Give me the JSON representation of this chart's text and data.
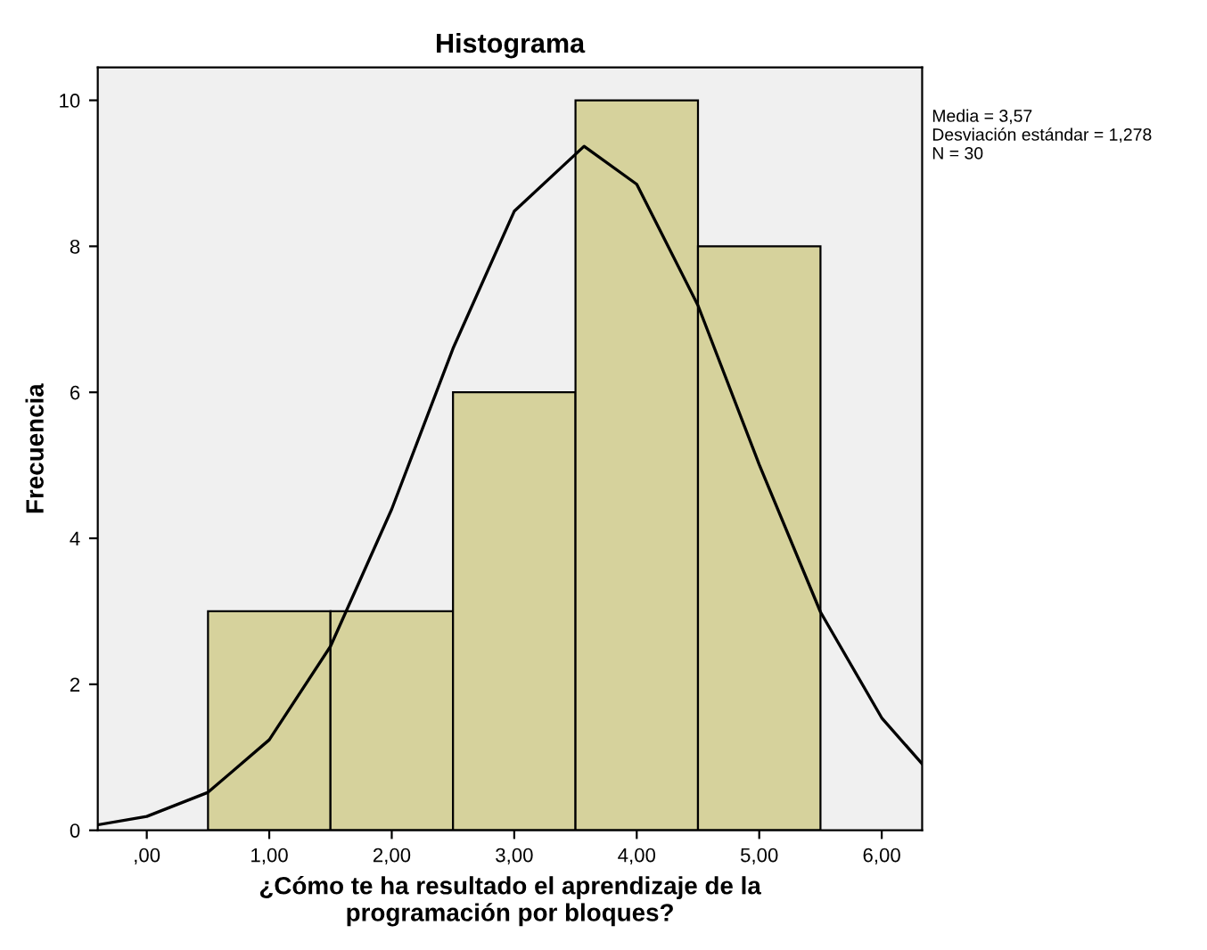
{
  "chart_data": {
    "type": "histogram",
    "title": "Histograma",
    "xlabel": "¿Cómo te ha resultado el aprendizaje de la\nprogramación por bloques?",
    "ylabel": "Frecuencia",
    "bins": [
      0.5,
      1.5,
      2.5,
      3.5,
      4.5,
      5.5
    ],
    "values": [
      3,
      3,
      6,
      10,
      8
    ],
    "color": "#d6d29c",
    "series": [
      {
        "type": "line",
        "x": [
          -0.4,
          0,
          0.5,
          1,
          1.5,
          2,
          2.5,
          3,
          3.57,
          4,
          4.5,
          5,
          5.5,
          6,
          6.33
        ],
        "values": [
          0.075,
          0.19,
          0.52,
          1.24,
          2.52,
          4.4,
          6.6,
          8.48,
          9.37,
          8.85,
          7.19,
          5.01,
          2.99,
          1.54,
          0.91
        ],
        "color": "#000000"
      }
    ],
    "xlim": [
      -0.4,
      6.33
    ],
    "ylim": [
      0,
      10.45
    ],
    "xticks": [
      {
        "value": 0,
        "label": ",00"
      },
      {
        "value": 1,
        "label": "1,00"
      },
      {
        "value": 2,
        "label": "2,00"
      },
      {
        "value": 3,
        "label": "3,00"
      },
      {
        "value": 4,
        "label": "4,00"
      },
      {
        "value": 5,
        "label": "5,00"
      },
      {
        "value": 6,
        "label": "6,00"
      }
    ],
    "yticks": [
      0,
      2,
      4,
      6,
      8,
      10
    ],
    "annotations": [
      "Media = 3,57\nDesviación estándar = 1,278\nN = 30"
    ],
    "grid": false
  }
}
